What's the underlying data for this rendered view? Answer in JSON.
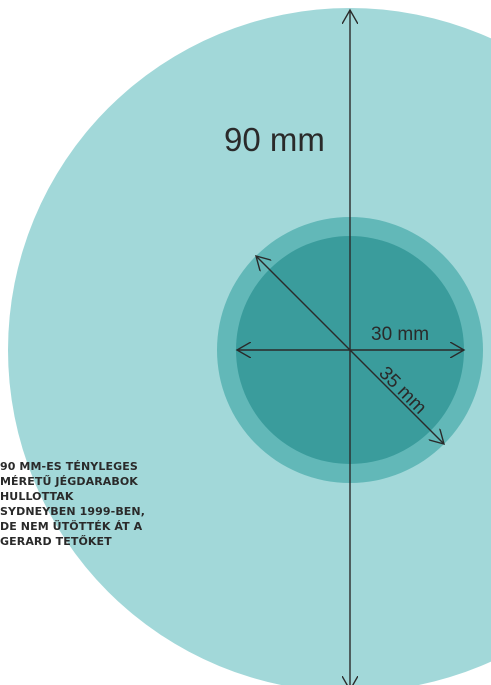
{
  "colors": {
    "background": "#ffffff",
    "large_circle": "#a2d8d9",
    "medium_circle": "#62b8b8",
    "small_circle": "#3a9c9c",
    "lines": "#2a2a2a",
    "text": "#2a2a2a"
  },
  "labels": {
    "large_diameter": "90 mm",
    "small_radius": "30 mm",
    "medium_radius": "35 mm"
  },
  "caption_lines": [
    "90 MM-ES TÉNYLEGES",
    "MÉRETŰ JÉGDARABOK",
    "HULLOTTAK",
    "SYDNEYBEN 1999-BEN,",
    "DE NEM ÜTÖTTÉK ÁT A",
    "GERARD TETŐKET"
  ],
  "sizes_mm": {
    "large": 90,
    "medium": 35,
    "small": 30
  }
}
